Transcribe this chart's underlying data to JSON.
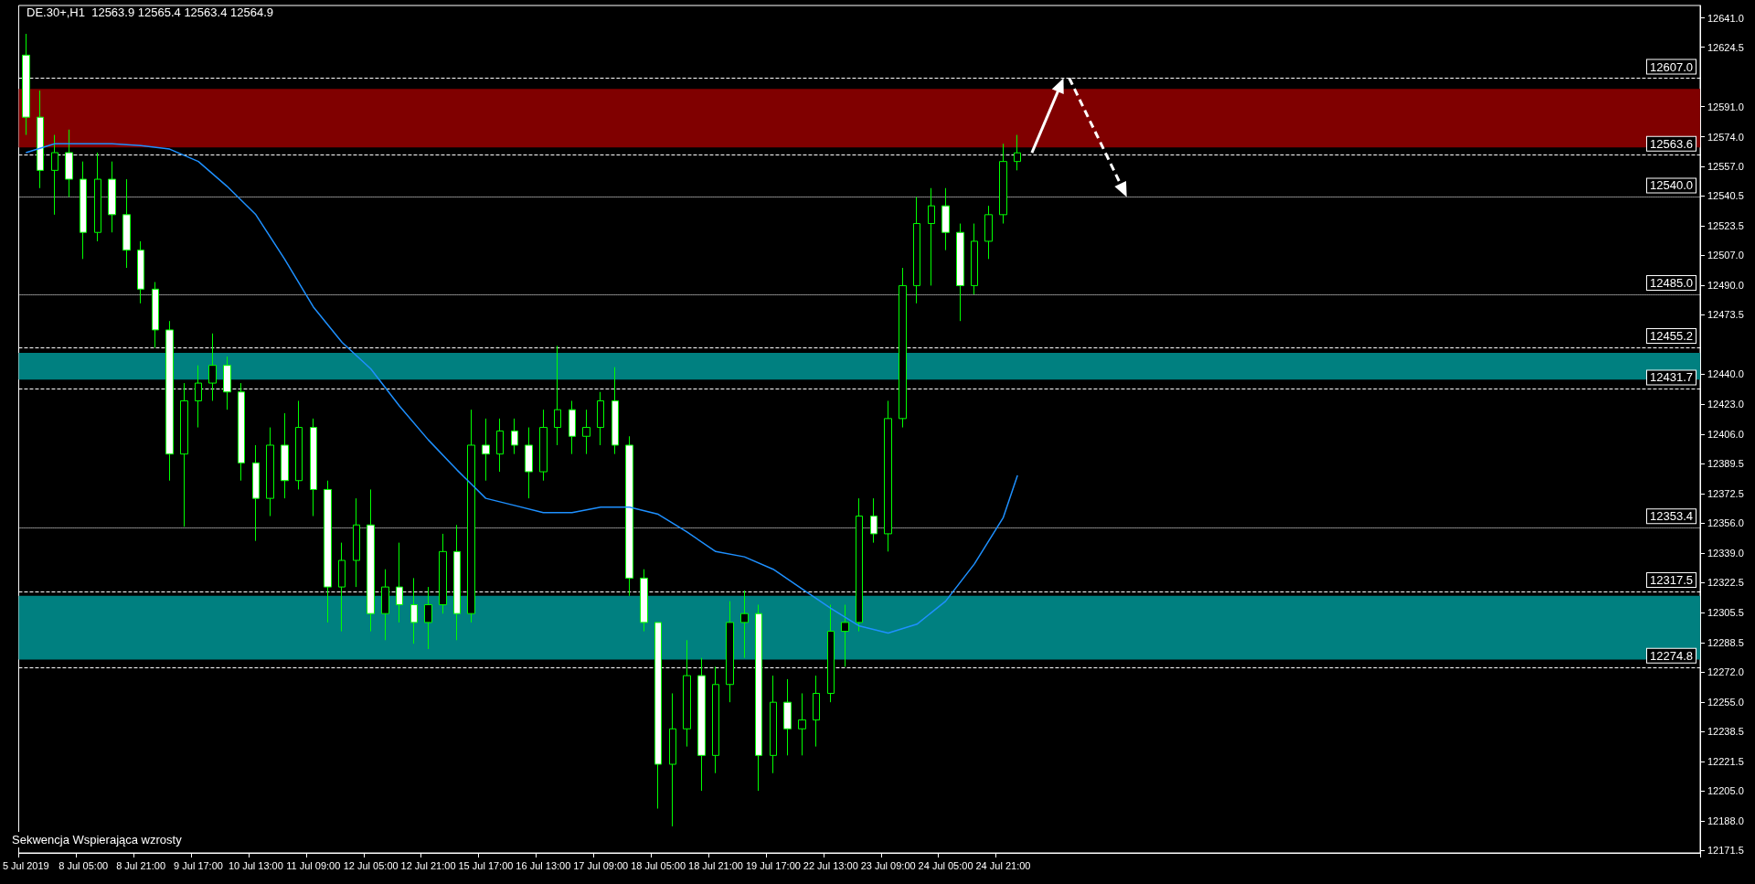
{
  "chart_data": {
    "type": "candlestick",
    "title": "DE.30+,H1  12563.9 12565.4 12563.4 12564.9",
    "annotations": [
      "Sekwencja Wspierająca wzrosty"
    ],
    "categories": [
      "5 Jul 2019",
      null,
      null,
      null,
      "8 Jul 05:00",
      null,
      null,
      null,
      "8 Jul 21:00",
      null,
      null,
      null,
      "9 Jul 17:00",
      null,
      null,
      null,
      "10 Jul 13:00",
      null,
      null,
      null,
      "11 Jul 09:00",
      null,
      null,
      null,
      "12 Jul 05:00",
      null,
      null,
      null,
      "12 Jul 21:00",
      null,
      null,
      null,
      "15 Jul 17:00",
      null,
      null,
      null,
      "16 Jul 13:00",
      null,
      null,
      null,
      "17 Jul 09:00",
      null,
      null,
      null,
      "18 Jul 05:00",
      null,
      null,
      null,
      "18 Jul 21:00",
      null,
      null,
      null,
      "19 Jul 17:00",
      null,
      null,
      null,
      "22 Jul 13:00",
      null,
      null,
      null,
      "23 Jul 09:00",
      null,
      null,
      null,
      "24 Jul 05:00",
      null,
      null,
      null,
      "24 Jul 21:00",
      null,
      null,
      null,
      null,
      null,
      null,
      null,
      null,
      null,
      null,
      null,
      null,
      null,
      null,
      null,
      null,
      null,
      null,
      null,
      null,
      null,
      null,
      null,
      null,
      null,
      null,
      null,
      null,
      null,
      null,
      null,
      null,
      null,
      null,
      null,
      null,
      null,
      null,
      null,
      null,
      null,
      null,
      null,
      null,
      null,
      null,
      null,
      null
    ],
    "series": [
      {
        "type": "candlestick",
        "color": "#00ff00",
        "ohlc": [
          [
            12620,
            12632,
            12575,
            12585
          ],
          [
            12585,
            12600,
            12545,
            12555
          ],
          [
            12555,
            12575,
            12530,
            12565
          ],
          [
            12565,
            12578,
            12540,
            12550
          ],
          [
            12550,
            12560,
            12505,
            12520
          ],
          [
            12520,
            12565,
            12515,
            12550
          ],
          [
            12550,
            12560,
            12520,
            12530
          ],
          [
            12530,
            12550,
            12500,
            12510
          ],
          [
            12510,
            12515,
            12480,
            12488
          ],
          [
            12488,
            12492,
            12455,
            12465
          ],
          [
            12465,
            12470,
            12380,
            12395
          ],
          [
            12395,
            12435,
            12354,
            12425
          ],
          [
            12425,
            12445,
            12410,
            12435
          ],
          [
            12435,
            12463,
            12425,
            12445
          ],
          [
            12445,
            12450,
            12420,
            12430
          ],
          [
            12430,
            12435,
            12380,
            12390
          ],
          [
            12390,
            12400,
            12346,
            12370
          ],
          [
            12370,
            12410,
            12360,
            12400
          ],
          [
            12400,
            12418,
            12370,
            12380
          ],
          [
            12380,
            12425,
            12375,
            12410
          ],
          [
            12410,
            12415,
            12360,
            12375
          ],
          [
            12375,
            12380,
            12300,
            12320
          ],
          [
            12320,
            12345,
            12295,
            12335
          ],
          [
            12335,
            12370,
            12320,
            12355
          ],
          [
            12355,
            12375,
            12295,
            12305
          ],
          [
            12305,
            12330,
            12290,
            12320
          ],
          [
            12320,
            12345,
            12300,
            12310
          ],
          [
            12310,
            12325,
            12288,
            12300
          ],
          [
            12300,
            12320,
            12285,
            12310
          ],
          [
            12310,
            12350,
            12305,
            12340
          ],
          [
            12340,
            12355,
            12290,
            12305
          ],
          [
            12305,
            12420,
            12300,
            12400
          ],
          [
            12400,
            12415,
            12380,
            12395
          ],
          [
            12395,
            12415,
            12385,
            12408
          ],
          [
            12408,
            12415,
            12395,
            12400
          ],
          [
            12400,
            12410,
            12370,
            12385
          ],
          [
            12385,
            12420,
            12380,
            12410
          ],
          [
            12410,
            12456,
            12400,
            12420
          ],
          [
            12420,
            12425,
            12395,
            12405
          ],
          [
            12405,
            12420,
            12395,
            12410
          ],
          [
            12410,
            12430,
            12400,
            12425
          ],
          [
            12425,
            12444,
            12395,
            12400
          ],
          [
            12400,
            12405,
            12315,
            12325
          ],
          [
            12325,
            12330,
            12295,
            12300
          ],
          [
            12300,
            12300,
            12195,
            12220
          ],
          [
            12220,
            12260,
            12185,
            12240
          ],
          [
            12240,
            12290,
            12230,
            12270
          ],
          [
            12270,
            12280,
            12205,
            12225
          ],
          [
            12225,
            12275,
            12215,
            12265
          ],
          [
            12265,
            12312,
            12255,
            12300
          ],
          [
            12300,
            12318,
            12280,
            12305
          ],
          [
            12305,
            12310,
            12205,
            12225
          ],
          [
            12225,
            12270,
            12215,
            12255
          ],
          [
            12255,
            12268,
            12225,
            12240
          ],
          [
            12240,
            12260,
            12225,
            12245
          ],
          [
            12245,
            12270,
            12230,
            12260
          ],
          [
            12260,
            12310,
            12255,
            12295
          ],
          [
            12295,
            12310,
            12275,
            12300
          ],
          [
            12300,
            12370,
            12295,
            12360
          ],
          [
            12360,
            12370,
            12345,
            12350
          ],
          [
            12350,
            12425,
            12340,
            12415
          ],
          [
            12415,
            12500,
            12410,
            12490
          ],
          [
            12490,
            12540,
            12480,
            12525
          ],
          [
            12525,
            12545,
            12490,
            12535
          ],
          [
            12535,
            12545,
            12510,
            12520
          ],
          [
            12520,
            12525,
            12470,
            12490
          ],
          [
            12490,
            12525,
            12485,
            12515
          ],
          [
            12515,
            12535,
            12505,
            12530
          ],
          [
            12530,
            12570,
            12525,
            12560
          ],
          [
            12560,
            12575,
            12555,
            12564.9
          ],
          null,
          null,
          null,
          null,
          null,
          null,
          null,
          null,
          null,
          null,
          null,
          null,
          null,
          null,
          null,
          null,
          null,
          null,
          null,
          null,
          null,
          null,
          null,
          null,
          null,
          null,
          null,
          null,
          null,
          null,
          null,
          null,
          null,
          null,
          null,
          null,
          null,
          null,
          null,
          null,
          null,
          null,
          null,
          null,
          null,
          null,
          null
        ]
      },
      {
        "type": "line",
        "color": "#1e90ff",
        "values": [
          12565,
          null,
          12570,
          null,
          12570,
          null,
          12570,
          null,
          12569,
          null,
          12567,
          null,
          12560,
          null,
          12546,
          null,
          12530,
          null,
          12505,
          null,
          12478,
          null,
          12458,
          null,
          12443,
          null,
          12422,
          null,
          12403,
          null,
          12386,
          null,
          12370,
          null,
          12366,
          null,
          12362,
          null,
          12362,
          null,
          12365,
          null,
          12365,
          null,
          12361,
          null,
          12351,
          null,
          12340,
          null,
          12337,
          null,
          12330,
          null,
          12319,
          null,
          12308,
          null,
          12298,
          null,
          12294,
          null,
          12299,
          null,
          12312,
          null,
          12333,
          null,
          12359,
          12383,
          null,
          null,
          null,
          null,
          null,
          null,
          null,
          null,
          null,
          null,
          null,
          null,
          null,
          null,
          null,
          null,
          null,
          null,
          null,
          null,
          null,
          null,
          null,
          null,
          null,
          null,
          null,
          null,
          null,
          null,
          null,
          null,
          null,
          null,
          null,
          null,
          null,
          null,
          null,
          null,
          null,
          null,
          null,
          null,
          null,
          null,
          null
        ]
      }
    ],
    "ylim": [
      12170,
      12648
    ],
    "yticks": [
      {
        "value": 12641,
        "label": "12641.0"
      },
      {
        "value": 12624.5,
        "label": "12624.5"
      },
      {
        "value": 12591,
        "label": "12591.0"
      },
      {
        "value": 12574,
        "label": "12574.0"
      },
      {
        "value": 12557,
        "label": "12557.0"
      },
      {
        "value": 12540.5,
        "label": "12540.5"
      },
      {
        "value": 12523.5,
        "label": "12523.5"
      },
      {
        "value": 12507,
        "label": "12507.0"
      },
      {
        "value": 12490,
        "label": "12490.0"
      },
      {
        "value": 12473.5,
        "label": "12473.5"
      },
      {
        "value": 12440,
        "label": "12440.0"
      },
      {
        "value": 12423,
        "label": "12423.0"
      },
      {
        "value": 12406,
        "label": "12406.0"
      },
      {
        "value": 12389.5,
        "label": "12389.5"
      },
      {
        "value": 12372.5,
        "label": "12372.5"
      },
      {
        "value": 12356,
        "label": "12356.0"
      },
      {
        "value": 12339,
        "label": "12339.0"
      },
      {
        "value": 12322.5,
        "label": "12322.5"
      },
      {
        "value": 12305.5,
        "label": "12305.5"
      },
      {
        "value": 12288.5,
        "label": "12288.5"
      },
      {
        "value": 12272,
        "label": "12272.0"
      },
      {
        "value": 12255,
        "label": "12255.0"
      },
      {
        "value": 12238.5,
        "label": "12238.5"
      },
      {
        "value": 12221.5,
        "label": "12221.5"
      },
      {
        "value": 12205,
        "label": "12205.0"
      },
      {
        "value": 12188,
        "label": "12188.0"
      },
      {
        "value": 12171.5,
        "label": "12171.5"
      }
    ],
    "ref_lines": [
      {
        "axis": "y",
        "value": 12607,
        "label": "12607.0",
        "line_style": "dashed",
        "color": "#ffffff"
      },
      {
        "axis": "y",
        "value": 12563.6,
        "label": "12563.6",
        "line_style": "dashed",
        "color": "#ffffff"
      },
      {
        "axis": "y",
        "value": 12540,
        "label": "12540.0",
        "line_style": "dotted",
        "color": "#ffffff"
      },
      {
        "axis": "y",
        "value": 12485,
        "label": "12485.0",
        "line_style": "dotted",
        "color": "#ffffff"
      },
      {
        "axis": "y",
        "value": 12455.2,
        "label": "12455.2",
        "line_style": "dashed",
        "color": "#ffffff"
      },
      {
        "axis": "y",
        "value": 12431.7,
        "label": "12431.7",
        "line_style": "dashed",
        "color": "#ffffff"
      },
      {
        "axis": "y",
        "value": 12353.4,
        "label": "12353.4",
        "line_style": "dotted",
        "color": "#ffffff"
      },
      {
        "axis": "y",
        "value": 12317.5,
        "label": "12317.5",
        "line_style": "dashed",
        "color": "#ffffff"
      },
      {
        "axis": "y",
        "value": 12274.8,
        "label": "12274.8",
        "line_style": "dashed",
        "color": "#ffffff"
      }
    ],
    "bands": [
      {
        "axis": "y",
        "from": 12568,
        "to": 12601,
        "color": "#800000"
      },
      {
        "axis": "y",
        "from": 12437,
        "to": 12452,
        "color": "#008080"
      },
      {
        "axis": "y",
        "from": 12279,
        "to": 12315,
        "color": "#008080"
      }
    ],
    "marker": "none"
  }
}
